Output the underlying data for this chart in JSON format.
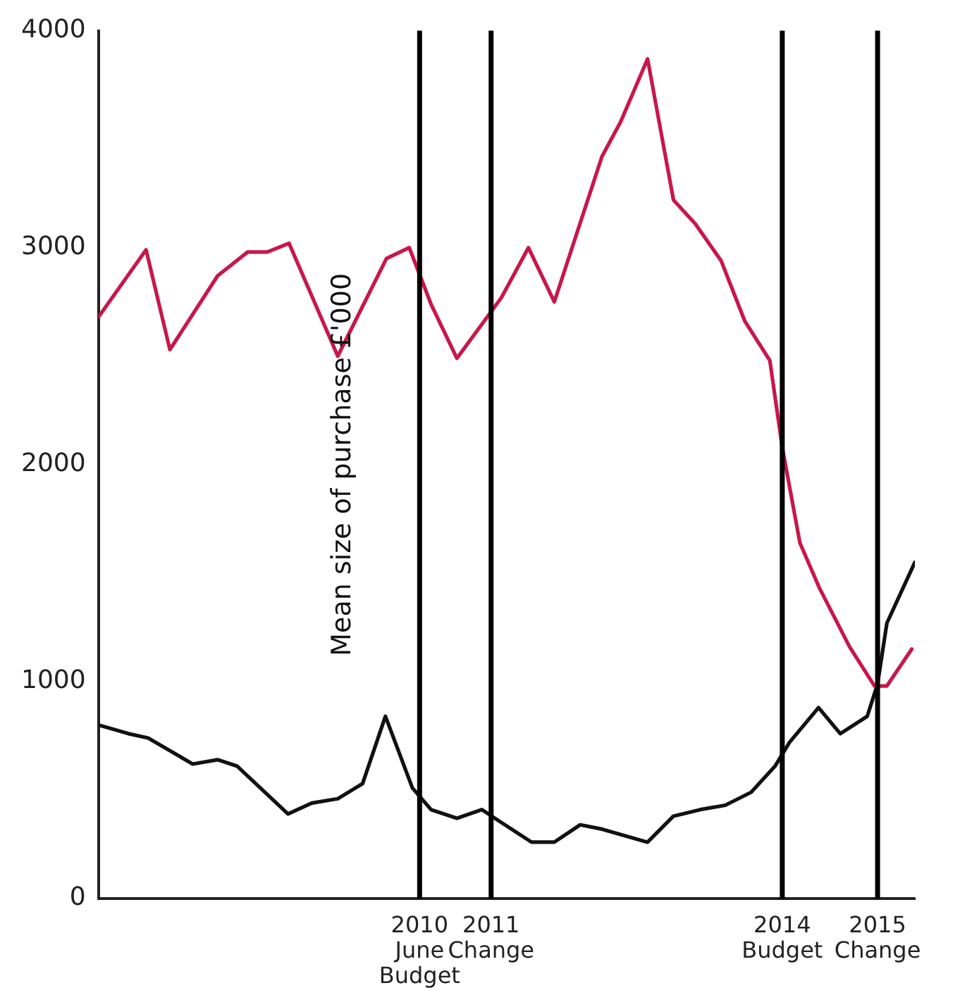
{
  "chart_data": {
    "type": "line",
    "ylabel": "Mean size of purchase £'000",
    "xlim": [
      2007.4,
      2015.28
    ],
    "ylim": [
      0,
      4000
    ],
    "yticks": [
      0,
      1000,
      2000,
      3000,
      4000
    ],
    "tick_labels": "y",
    "grid": false,
    "legend": false,
    "marker": "none",
    "line_style": "solid",
    "series": [
      {
        "color": "#c8174a",
        "x": [
          2007.4,
          2007.86,
          2008.09,
          2008.55,
          2008.84,
          2009.03,
          2009.24,
          2009.71,
          2010.18,
          2010.4,
          2010.61,
          2010.86,
          2011.29,
          2011.55,
          2011.8,
          2012.26,
          2012.44,
          2012.7,
          2012.95,
          2013.16,
          2013.41,
          2013.64,
          2013.88,
          2014.0,
          2014.17,
          2014.36,
          2014.65,
          2014.89,
          2015.01,
          2015.25
        ],
        "values": [
          2680,
          2990,
          2530,
          2870,
          2980,
          2980,
          3020,
          2500,
          2950,
          3000,
          2740,
          2490,
          2770,
          3000,
          2750,
          3420,
          3580,
          3870,
          3220,
          3110,
          2940,
          2660,
          2480,
          2080,
          1640,
          1430,
          1160,
          980,
          980,
          1150
        ]
      },
      {
        "color": "#111111",
        "x": [
          2007.4,
          2007.69,
          2007.88,
          2008.31,
          2008.55,
          2008.74,
          2009.23,
          2009.46,
          2009.71,
          2009.95,
          2010.17,
          2010.43,
          2010.61,
          2010.86,
          2011.1,
          2011.29,
          2011.58,
          2011.8,
          2012.05,
          2012.26,
          2012.7,
          2012.95,
          2013.21,
          2013.45,
          2013.7,
          2013.93,
          2014.07,
          2014.35,
          2014.56,
          2014.82,
          2014.92,
          2015.01,
          2015.28
        ],
        "values": [
          800,
          760,
          740,
          620,
          640,
          610,
          390,
          440,
          460,
          530,
          840,
          510,
          410,
          370,
          410,
          350,
          260,
          260,
          340,
          320,
          260,
          380,
          410,
          430,
          490,
          610,
          720,
          880,
          760,
          840,
          990,
          1270,
          1550
        ]
      }
    ],
    "ref_lines": [
      {
        "axis": "x",
        "value": 2010.5,
        "label": "2010 June Budget",
        "color": "#000000"
      },
      {
        "axis": "x",
        "value": 2011.19,
        "label": "2011 Change",
        "color": "#000000"
      },
      {
        "axis": "x",
        "value": 2014.0,
        "label": "2014 Budget",
        "color": "#000000"
      },
      {
        "axis": "x",
        "value": 2014.92,
        "label": "2015 Change",
        "color": "#000000"
      }
    ]
  }
}
